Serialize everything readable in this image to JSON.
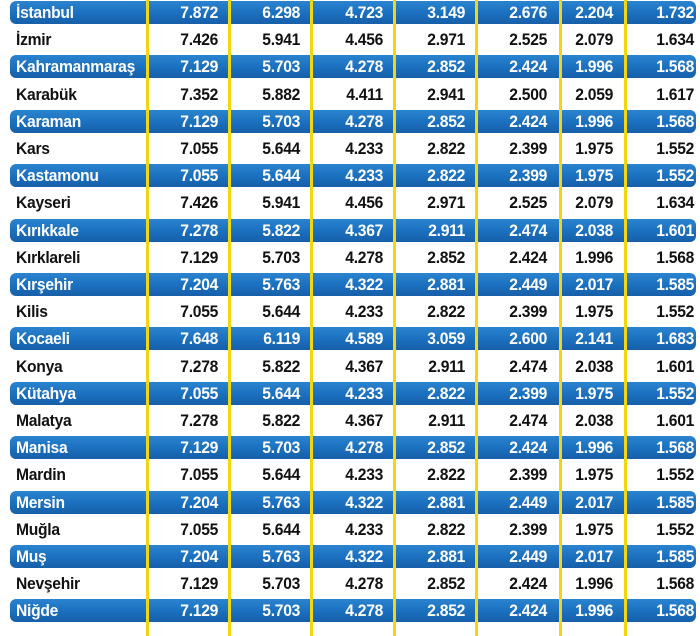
{
  "rows": [
    {
      "name": "İstanbul",
      "values": [
        "7.872",
        "6.298",
        "4.723",
        "3.149",
        "2.676",
        "2.204",
        "1.732"
      ],
      "style": "blue"
    },
    {
      "name": "İzmir",
      "values": [
        "7.426",
        "5.941",
        "4.456",
        "2.971",
        "2.525",
        "2.079",
        "1.634"
      ],
      "style": "white"
    },
    {
      "name": "Kahramanmaraş",
      "values": [
        "7.129",
        "5.703",
        "4.278",
        "2.852",
        "2.424",
        "1.996",
        "1.568"
      ],
      "style": "blue"
    },
    {
      "name": "Karabük",
      "values": [
        "7.352",
        "5.882",
        "4.411",
        "2.941",
        "2.500",
        "2.059",
        "1.617"
      ],
      "style": "white"
    },
    {
      "name": "Karaman",
      "values": [
        "7.129",
        "5.703",
        "4.278",
        "2.852",
        "2.424",
        "1.996",
        "1.568"
      ],
      "style": "blue"
    },
    {
      "name": "Kars",
      "values": [
        "7.055",
        "5.644",
        "4.233",
        "2.822",
        "2.399",
        "1.975",
        "1.552"
      ],
      "style": "white"
    },
    {
      "name": "Kastamonu",
      "values": [
        "7.055",
        "5.644",
        "4.233",
        "2.822",
        "2.399",
        "1.975",
        "1.552"
      ],
      "style": "blue"
    },
    {
      "name": "Kayseri",
      "values": [
        "7.426",
        "5.941",
        "4.456",
        "2.971",
        "2.525",
        "2.079",
        "1.634"
      ],
      "style": "white"
    },
    {
      "name": "Kırıkkale",
      "values": [
        "7.278",
        "5.822",
        "4.367",
        "2.911",
        "2.474",
        "2.038",
        "1.601"
      ],
      "style": "blue"
    },
    {
      "name": "Kırklareli",
      "values": [
        "7.129",
        "5.703",
        "4.278",
        "2.852",
        "2.424",
        "1.996",
        "1.568"
      ],
      "style": "white"
    },
    {
      "name": "Kırşehir",
      "values": [
        "7.204",
        "5.763",
        "4.322",
        "2.881",
        "2.449",
        "2.017",
        "1.585"
      ],
      "style": "blue"
    },
    {
      "name": "Kilis",
      "values": [
        "7.055",
        "5.644",
        "4.233",
        "2.822",
        "2.399",
        "1.975",
        "1.552"
      ],
      "style": "white"
    },
    {
      "name": "Kocaeli",
      "values": [
        "7.648",
        "6.119",
        "4.589",
        "3.059",
        "2.600",
        "2.141",
        "1.683"
      ],
      "style": "blue"
    },
    {
      "name": "Konya",
      "values": [
        "7.278",
        "5.822",
        "4.367",
        "2.911",
        "2.474",
        "2.038",
        "1.601"
      ],
      "style": "white"
    },
    {
      "name": "Kütahya",
      "values": [
        "7.055",
        "5.644",
        "4.233",
        "2.822",
        "2.399",
        "1.975",
        "1.552"
      ],
      "style": "blue"
    },
    {
      "name": "Malatya",
      "values": [
        "7.278",
        "5.822",
        "4.367",
        "2.911",
        "2.474",
        "2.038",
        "1.601"
      ],
      "style": "white"
    },
    {
      "name": "Manisa",
      "values": [
        "7.129",
        "5.703",
        "4.278",
        "2.852",
        "2.424",
        "1.996",
        "1.568"
      ],
      "style": "blue"
    },
    {
      "name": "Mardin",
      "values": [
        "7.055",
        "5.644",
        "4.233",
        "2.822",
        "2.399",
        "1.975",
        "1.552"
      ],
      "style": "white"
    },
    {
      "name": "Mersin",
      "values": [
        "7.204",
        "5.763",
        "4.322",
        "2.881",
        "2.449",
        "2.017",
        "1.585"
      ],
      "style": "blue"
    },
    {
      "name": "Muğla",
      "values": [
        "7.055",
        "5.644",
        "4.233",
        "2.822",
        "2.399",
        "1.975",
        "1.552"
      ],
      "style": "white"
    },
    {
      "name": "Muş",
      "values": [
        "7.204",
        "5.763",
        "4.322",
        "2.881",
        "2.449",
        "2.017",
        "1.585"
      ],
      "style": "blue"
    },
    {
      "name": "Nevşehir",
      "values": [
        "7.129",
        "5.703",
        "4.278",
        "2.852",
        "2.424",
        "1.996",
        "1.568"
      ],
      "style": "white"
    },
    {
      "name": "Niğde",
      "values": [
        "7.129",
        "5.703",
        "4.278",
        "2.852",
        "2.424",
        "1.996",
        "1.568"
      ],
      "style": "blue"
    }
  ],
  "colors": {
    "row_blue": "#1a6fbe",
    "column_divider": "#f2d60f",
    "text_on_blue": "#ffffff",
    "text_on_white": "#111111"
  }
}
